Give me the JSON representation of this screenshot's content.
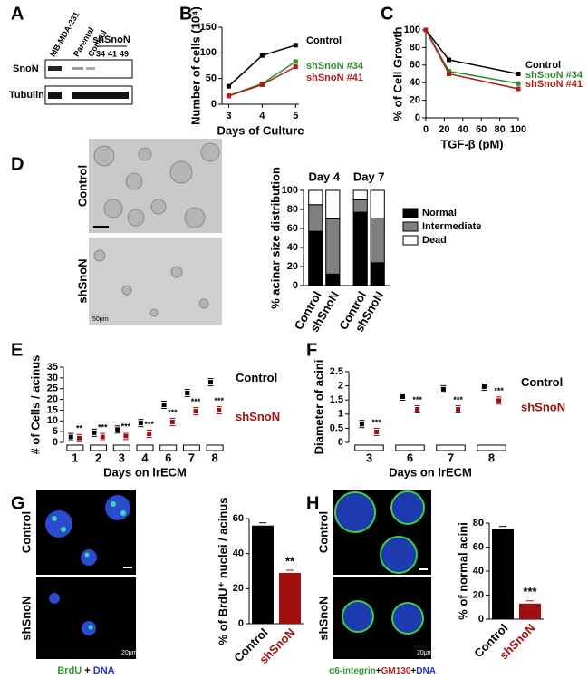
{
  "panel_labels": [
    "A",
    "B",
    "C",
    "D",
    "E",
    "F",
    "G",
    "H"
  ],
  "blot": {
    "lanes": [
      "MB-MDA-231",
      "Parental",
      "Control"
    ],
    "group": "shSnoN",
    "group_lanes": [
      "34",
      "41",
      "49"
    ],
    "rows": [
      "SnoN",
      "Tubulin"
    ]
  },
  "micrographs": {
    "D": {
      "rows": [
        "Control",
        "shSnoN"
      ],
      "scale": "50μm"
    },
    "G": {
      "rows": [
        "Control",
        "shSnoN"
      ],
      "scale": "20μm",
      "caption": [
        "BrdU",
        "+",
        "DNA"
      ]
    },
    "H": {
      "rows": [
        "Control",
        "shSnoN"
      ],
      "scale": "20μm",
      "caption": [
        "α6-integrin",
        "+",
        "GM130",
        "+",
        "DNA"
      ]
    }
  },
  "chart_data": [
    {
      "type": "line",
      "x": [
        3,
        4,
        5
      ],
      "xlim": [
        2.8,
        5.1
      ],
      "xticks": [
        3,
        4,
        5
      ],
      "ylim": [
        0,
        150
      ],
      "yticks": [
        0,
        50,
        100,
        150
      ],
      "xlabel": "Days of Culture",
      "ylabel": "Number of cells (10⁴)",
      "series": [
        {
          "name": "Control",
          "color": "#000000",
          "values": [
            35,
            95,
            115
          ]
        },
        {
          "name": "shSnoN #34",
          "color": "#2e8b2e",
          "values": [
            17,
            40,
            83
          ]
        },
        {
          "name": "shSnoN #41",
          "color": "#b01c1c",
          "values": [
            16,
            38,
            73
          ]
        }
      ]
    },
    {
      "type": "line",
      "x": [
        0,
        25,
        100
      ],
      "xlim": [
        0,
        100
      ],
      "xticks": [
        0,
        20,
        40,
        60,
        80,
        100
      ],
      "ylim": [
        0,
        100
      ],
      "yticks": [
        0,
        20,
        40,
        60,
        80,
        100
      ],
      "xlabel": "TGF-β (pM)",
      "ylabel": "% of Cell Growth",
      "series": [
        {
          "name": "Control",
          "color": "#000000",
          "values": [
            100,
            66,
            50
          ]
        },
        {
          "name": "shSnoN #34",
          "color": "#2e8b2e",
          "values": [
            100,
            53,
            39
          ]
        },
        {
          "name": "shSnoN #41",
          "color": "#b01c1c",
          "values": [
            100,
            50,
            33
          ]
        }
      ]
    },
    {
      "type": "stacked",
      "categories": [
        "Control",
        "shSnoN",
        "Control",
        "shSnoN"
      ],
      "groups": [
        "Day 4",
        "Day 7"
      ],
      "ylim": [
        0,
        100
      ],
      "yticks": [
        0,
        20,
        40,
        60,
        80,
        100
      ],
      "ylabel": "% acinar size distribution",
      "series": [
        {
          "name": "Normal",
          "color": "#000000",
          "values": [
            57,
            12,
            77,
            24
          ]
        },
        {
          "name": "Intermediate",
          "color": "#808080",
          "values": [
            28,
            58,
            13,
            47
          ]
        },
        {
          "name": "Dead",
          "color": "#ffffff",
          "values": [
            15,
            30,
            10,
            29
          ]
        }
      ]
    },
    {
      "type": "dot",
      "categories": [
        "1",
        "2",
        "3",
        "4",
        "6",
        "7",
        "8"
      ],
      "ylim": [
        0,
        35
      ],
      "yticks": [
        0,
        5,
        10,
        15,
        20,
        25,
        30,
        35
      ],
      "xlabel": "Days on lrECM",
      "ylabel": "# of Cells / acinus",
      "series": [
        {
          "name": "Control",
          "color": "#000000",
          "values": [
            2.5,
            4.5,
            6,
            9,
            17.5,
            23,
            28
          ]
        },
        {
          "name": "shSnoN",
          "color": "#a01010",
          "values": [
            2,
            2.5,
            3,
            4,
            9.5,
            14.5,
            15
          ],
          "annotations": [
            "**",
            "***",
            "***",
            "***",
            "***",
            "***",
            "***"
          ]
        }
      ]
    },
    {
      "type": "dot",
      "categories": [
        "3",
        "6",
        "7",
        "8"
      ],
      "ylim": [
        0,
        2.5
      ],
      "yticks": [
        0,
        0.5,
        1,
        1.5,
        2,
        2.5
      ],
      "xlabel": "Days on lrECM",
      "ylabel": "Diameter of acini",
      "series": [
        {
          "name": "Control",
          "color": "#000000",
          "values": [
            0.65,
            1.62,
            1.88,
            1.97
          ]
        },
        {
          "name": "shSnoN",
          "color": "#a01010",
          "values": [
            0.37,
            1.17,
            1.17,
            1.48
          ],
          "annotations": [
            "***",
            "***",
            "***",
            "***"
          ]
        }
      ]
    },
    {
      "type": "bar",
      "categories": [
        "Control",
        "shSnoN"
      ],
      "values": [
        56,
        29
      ],
      "colors": [
        "#000000",
        "#a01010"
      ],
      "ylim": [
        0,
        60
      ],
      "yticks": [
        0,
        20,
        40,
        60
      ],
      "ylabel": "% of BrdU⁺ nuclei / acinus",
      "annotation": "**"
    },
    {
      "type": "bar",
      "categories": [
        "Control",
        "shSnoN"
      ],
      "values": [
        75,
        13
      ],
      "colors": [
        "#000000",
        "#a01010"
      ],
      "ylim": [
        0,
        80
      ],
      "yticks": [
        0,
        20,
        40,
        60,
        80
      ],
      "ylabel": "% of normal acini",
      "annotation": "***"
    }
  ]
}
